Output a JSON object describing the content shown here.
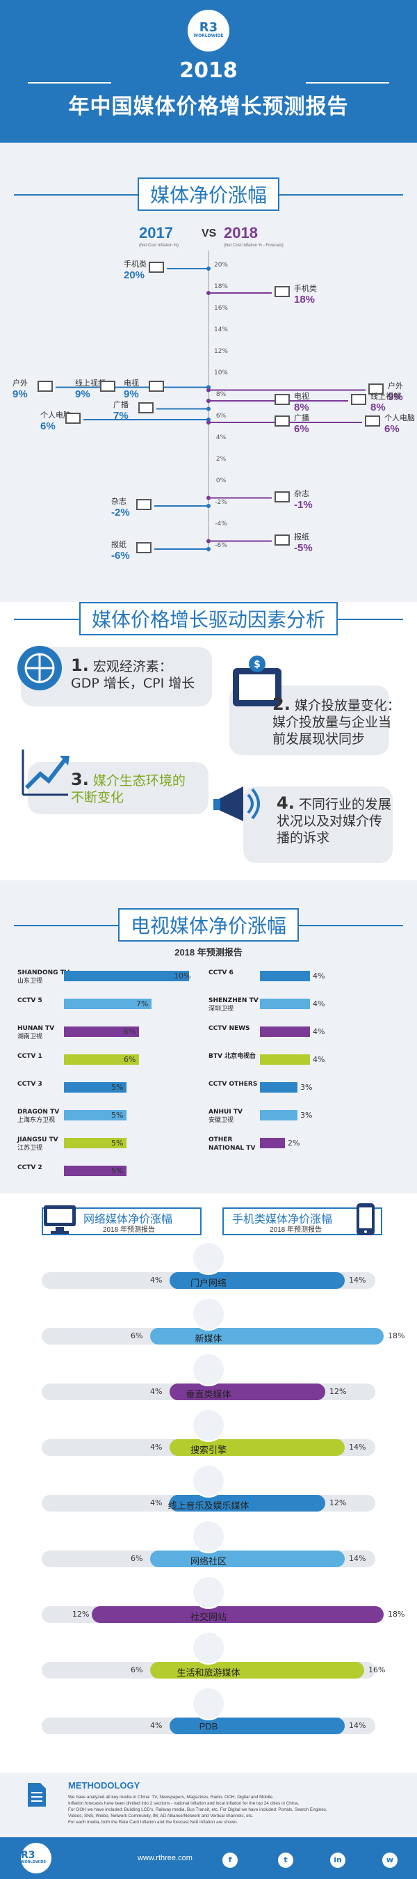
{
  "header": {
    "logo": "R3",
    "logo_sub": "WORLDWIDE",
    "year": "2018",
    "title": "年中国媒体价格增长预测报告"
  },
  "sec1": {
    "title": "媒体净价涨幅",
    "year_a": "2017",
    "vs": "VS",
    "year_b": "2018",
    "sub_a": "(Net Cost Inflation %)",
    "sub_b": "(Net Cost Inflation % - Forecast)"
  },
  "axis_ticks": [
    "20%",
    "18%",
    "16%",
    "14%",
    "12%",
    "10%",
    "8%",
    "6%",
    "4%",
    "2%",
    "0%",
    "-2%",
    "-4%",
    "-6%"
  ],
  "chart_data": {
    "type": "line",
    "title": "媒体净价涨幅",
    "series": [
      {
        "name": "2017",
        "points": [
          {
            "label": "手机类",
            "value": 20
          },
          {
            "label": "户外",
            "value": 9
          },
          {
            "label": "线上视频",
            "value": 9
          },
          {
            "label": "电视",
            "value": 9
          },
          {
            "label": "个人电脑",
            "value": 6
          },
          {
            "label": "广播",
            "value": 7
          },
          {
            "label": "杂志",
            "value": -2
          },
          {
            "label": "报纸",
            "value": -6
          }
        ]
      },
      {
        "name": "2018",
        "points": [
          {
            "label": "手机类",
            "value": 18
          },
          {
            "label": "户外",
            "value": 9
          },
          {
            "label": "线上视频",
            "value": 8
          },
          {
            "label": "电视",
            "value": 8
          },
          {
            "label": "个人电脑",
            "value": 6
          },
          {
            "label": "广播",
            "value": 6
          },
          {
            "label": "杂志",
            "value": -1
          },
          {
            "label": "报纸",
            "value": -5
          }
        ]
      }
    ],
    "ylim": [
      -6,
      20
    ]
  },
  "left_items": [
    {
      "label": "手机类",
      "pct": "20%"
    },
    {
      "label": "户外",
      "pct": "9%"
    },
    {
      "label": "线上视频",
      "pct": "9%"
    },
    {
      "label": "电视",
      "pct": "9%"
    },
    {
      "label": "个人电脑",
      "pct": "6%"
    },
    {
      "label": "广播",
      "pct": "7%"
    },
    {
      "label": "杂志",
      "pct": "-2%"
    },
    {
      "label": "报纸",
      "pct": "-6%"
    }
  ],
  "right_items": [
    {
      "label": "手机类",
      "pct": "18%"
    },
    {
      "label": "户外",
      "pct": "9%"
    },
    {
      "label": "线上视频",
      "pct": "8%"
    },
    {
      "label": "电视",
      "pct": "8%"
    },
    {
      "label": "个人电脑",
      "pct": "6%"
    },
    {
      "label": "广播",
      "pct": "6%"
    },
    {
      "label": "杂志",
      "pct": "-1%"
    },
    {
      "label": "报纸",
      "pct": "-5%"
    }
  ],
  "sec2": {
    "title": "媒体价格增长驱动因素分析",
    "f1_num": "1.",
    "f1_a": "宏观经济素：",
    "f1_b": "GDP 增长，CPI 增长",
    "f2_num": "2.",
    "f2_a": "媒介投放量变化：",
    "f2_b": "媒介投放量与企业当",
    "f2_c": "前发展现状同步",
    "f3_num": "3.",
    "f3_a": "媒介生态环境的",
    "f3_b": "不断变化",
    "f4_num": "4.",
    "f4_a": "不同行业的发展",
    "f4_b": "状况以及对媒介传",
    "f4_c": "播的诉求"
  },
  "sec3": {
    "title": "电视媒体净价涨幅",
    "subtitle": "2018 年预测报告"
  },
  "tv_left": [
    {
      "name": "SHANDONG TV",
      "cn": "山东卫视",
      "pct": "10%",
      "value": 10,
      "color": "#2d85c8"
    },
    {
      "name": "CCTV 5",
      "cn": "",
      "pct": "7%",
      "value": 7,
      "color": "#5aaee0"
    },
    {
      "name": "HUNAN TV",
      "cn": "湖南卫视",
      "pct": "6%",
      "value": 6,
      "color": "#7b3a96"
    },
    {
      "name": "CCTV 1",
      "cn": "",
      "pct": "6%",
      "value": 6,
      "color": "#b5cc2e"
    },
    {
      "name": "CCTV 3",
      "cn": "",
      "pct": "5%",
      "value": 5,
      "color": "#2d85c8"
    },
    {
      "name": "DRAGON TV",
      "cn": "上海东方卫视",
      "pct": "5%",
      "value": 5,
      "color": "#5aaee0"
    },
    {
      "name": "JIANGSU TV",
      "cn": "江苏卫视",
      "pct": "5%",
      "value": 5,
      "color": "#b5cc2e"
    },
    {
      "name": "CCTV 2",
      "cn": "",
      "pct": "5%",
      "value": 5,
      "color": "#7b3a96"
    }
  ],
  "tv_right": [
    {
      "name": "CCTV 6",
      "cn": "",
      "pct": "4%",
      "value": 4,
      "color": "#2d85c8"
    },
    {
      "name": "SHENZHEN TV",
      "cn": "深圳卫视",
      "pct": "4%",
      "value": 4,
      "color": "#5aaee0"
    },
    {
      "name": "CCTV NEWS",
      "cn": "",
      "pct": "4%",
      "value": 4,
      "color": "#7b3a96"
    },
    {
      "name": "BTV 北京电视台",
      "cn": "",
      "pct": "4%",
      "value": 4,
      "color": "#b5cc2e"
    },
    {
      "name": "CCTV OTHERS",
      "cn": "",
      "pct": "3%",
      "value": 3,
      "color": "#2d85c8"
    },
    {
      "name": "ANHUI TV",
      "cn": "安徽卫视",
      "pct": "3%",
      "value": 3,
      "color": "#5aaee0"
    },
    {
      "name": "OTHER",
      "cn": "NATIONAL TV",
      "pct": "2%",
      "value": 2,
      "color": "#7b3a96"
    }
  ],
  "sec4": {
    "left_title": "网络媒体净价涨幅",
    "left_sub": "2018 年预测报告",
    "right_title": "手机类媒体净价涨幅",
    "right_sub": "2018 年预测报告"
  },
  "digital": [
    {
      "label": "门户网络",
      "left": "4%",
      "lv": 4,
      "right": "14%",
      "rv": 14,
      "color": "#2d85c8",
      "icon": "monitor-icon"
    },
    {
      "label": "新媒体",
      "left": "6%",
      "lv": 6,
      "right": "18%",
      "rv": 18,
      "color": "#5aaee0",
      "icon": "new-media-icon"
    },
    {
      "label": "垂直类媒体",
      "left": "4%",
      "lv": 4,
      "right": "12%",
      "rv": 12,
      "color": "#7b3a96",
      "icon": "arrow-up-icon"
    },
    {
      "label": "搜索引擎",
      "left": "4%",
      "lv": 4,
      "right": "14%",
      "rv": 14,
      "color": "#b5cc2e",
      "icon": "search-icon"
    },
    {
      "label": "线上音乐及娱乐媒体",
      "left": "4%",
      "lv": 4,
      "right": "12%",
      "rv": 12,
      "color": "#2d85c8",
      "icon": "cloud-music-icon"
    },
    {
      "label": "网络社区",
      "left": "6%",
      "lv": 6,
      "right": "14%",
      "rv": 14,
      "color": "#5aaee0",
      "icon": "community-icon"
    },
    {
      "label": "社交网站",
      "left": "12%",
      "lv": 12,
      "right": "18%",
      "rv": 18,
      "color": "#7b3a96",
      "icon": "share-icon"
    },
    {
      "label": "生活和旅游媒体",
      "left": "6%",
      "lv": 6,
      "right": "16%",
      "rv": 16,
      "color": "#b5cc2e",
      "icon": "travel-icon"
    },
    {
      "label": "PDB",
      "left": "4%",
      "lv": 4,
      "right": "14%",
      "rv": 14,
      "color": "#2d85c8",
      "icon": "database-icon"
    }
  ],
  "method": {
    "title": "METHODOLOGY",
    "l1": "We have analyzed all key media in China: TV, Newspapers, Magazines, Radio, OOH, Digital and Mobile.",
    "l2": "Inflation forecasts have been divided into 2 sections - national inflation and local inflation for the top 24 cities in China.",
    "l3": "For OOH we have included: Building LCD's, Railway media, Bus Transit, etc. For Digital we have included: Portals, Search Engines,",
    "l4": "Videos, SNS, Weibo, Network Community, IM, AD Alliance/Network and Vertical channels, etc.",
    "l5": "For each media, both the Rate Card Inflation and the forecast Nett Inflation are shown."
  },
  "footer": {
    "logo": "R3",
    "logo_sub": "WORLDWIDE",
    "url": "www.rthree.com",
    "social": [
      "f",
      "t",
      "in",
      "w"
    ]
  }
}
